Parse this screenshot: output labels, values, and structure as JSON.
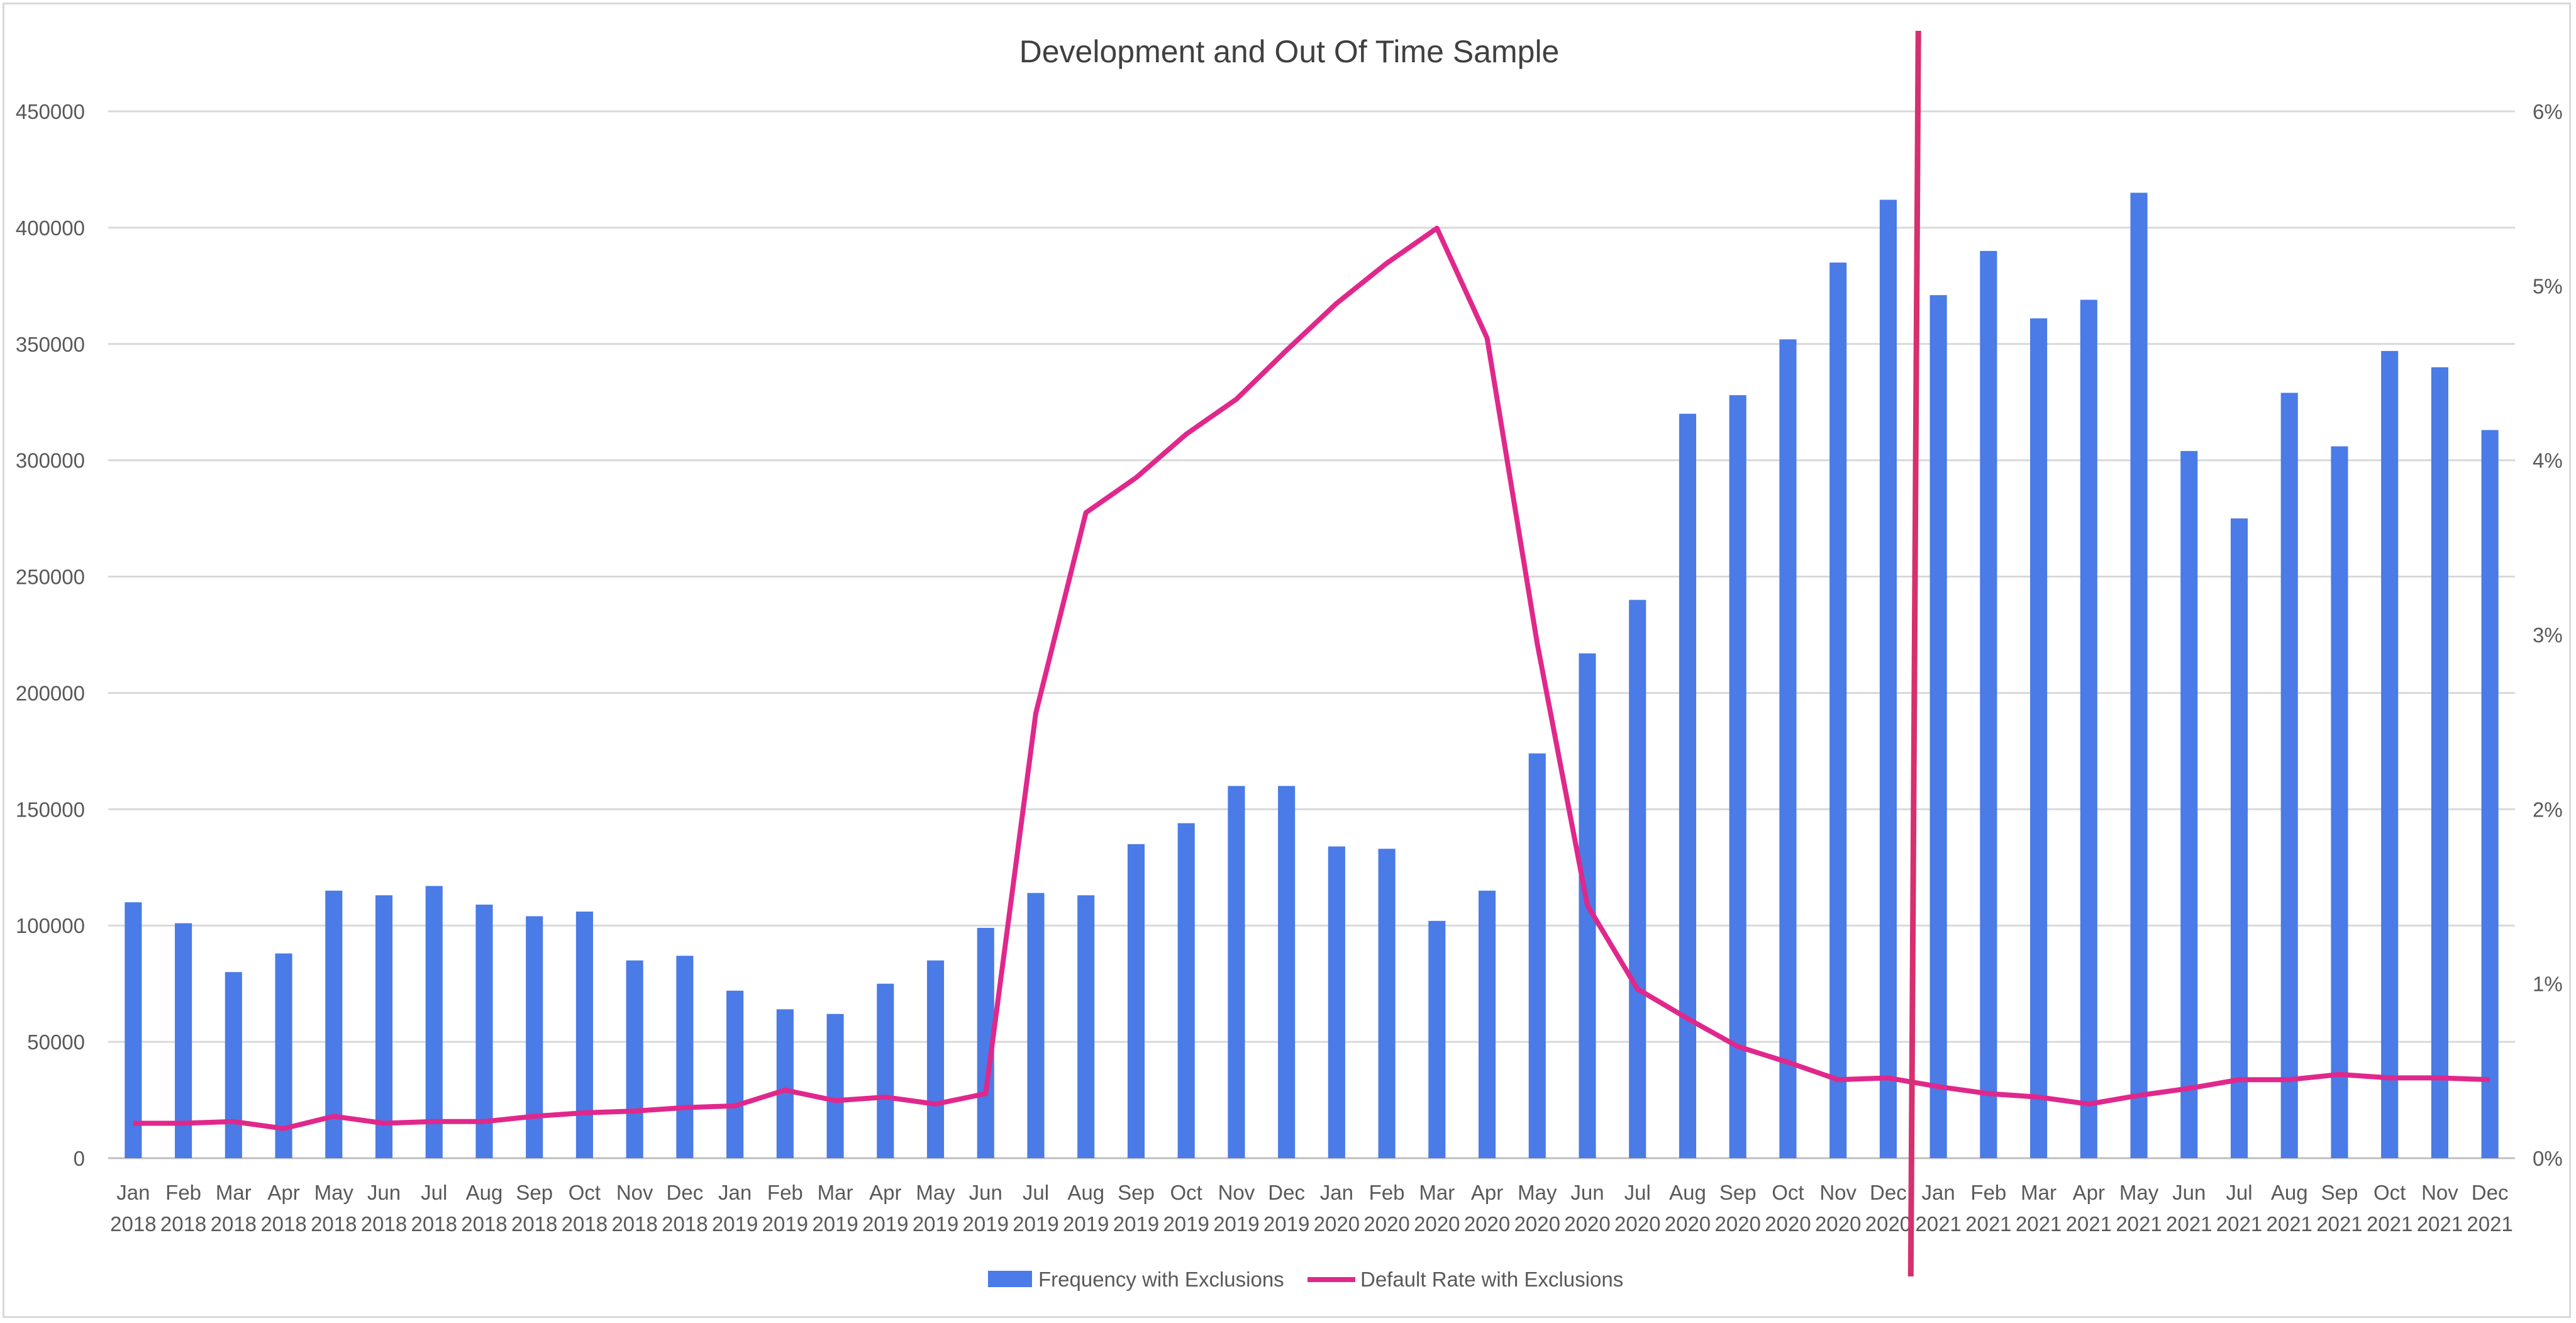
{
  "chart_data": {
    "type": "bar+line",
    "title": "Development and Out Of Time Sample",
    "categories": [
      [
        "Jan",
        "2018"
      ],
      [
        "Feb",
        "2018"
      ],
      [
        "Mar",
        "2018"
      ],
      [
        "Apr",
        "2018"
      ],
      [
        "May",
        "2018"
      ],
      [
        "Jun",
        "2018"
      ],
      [
        "Jul",
        "2018"
      ],
      [
        "Aug",
        "2018"
      ],
      [
        "Sep",
        "2018"
      ],
      [
        "Oct",
        "2018"
      ],
      [
        "Nov",
        "2018"
      ],
      [
        "Dec",
        "2018"
      ],
      [
        "Jan",
        "2019"
      ],
      [
        "Feb",
        "2019"
      ],
      [
        "Mar",
        "2019"
      ],
      [
        "Apr",
        "2019"
      ],
      [
        "May",
        "2019"
      ],
      [
        "Jun",
        "2019"
      ],
      [
        "Jul",
        "2019"
      ],
      [
        "Aug",
        "2019"
      ],
      [
        "Sep",
        "2019"
      ],
      [
        "Oct",
        "2019"
      ],
      [
        "Nov",
        "2019"
      ],
      [
        "Dec",
        "2019"
      ],
      [
        "Jan",
        "2020"
      ],
      [
        "Feb",
        "2020"
      ],
      [
        "Mar",
        "2020"
      ],
      [
        "Apr",
        "2020"
      ],
      [
        "May",
        "2020"
      ],
      [
        "Jun",
        "2020"
      ],
      [
        "Jul",
        "2020"
      ],
      [
        "Aug",
        "2020"
      ],
      [
        "Sep",
        "2020"
      ],
      [
        "Oct",
        "2020"
      ],
      [
        "Nov",
        "2020"
      ],
      [
        "Dec",
        "2020"
      ],
      [
        "Jan",
        "2021"
      ],
      [
        "Feb",
        "2021"
      ],
      [
        "Mar",
        "2021"
      ],
      [
        "Apr",
        "2021"
      ],
      [
        "May",
        "2021"
      ],
      [
        "Jun",
        "2021"
      ],
      [
        "Jul",
        "2021"
      ],
      [
        "Aug",
        "2021"
      ],
      [
        "Sep",
        "2021"
      ],
      [
        "Oct",
        "2021"
      ],
      [
        "Nov",
        "2021"
      ],
      [
        "Dec",
        "2021"
      ]
    ],
    "series": [
      {
        "name": "Frequency with Exclusions",
        "kind": "bar",
        "axis": "left",
        "color": "#4a7be6",
        "values": [
          110000,
          101000,
          80000,
          88000,
          115000,
          113000,
          117000,
          109000,
          104000,
          106000,
          85000,
          87000,
          72000,
          64000,
          62000,
          75000,
          85000,
          99000,
          114000,
          113000,
          135000,
          144000,
          160000,
          160000,
          134000,
          133000,
          102000,
          115000,
          174000,
          217000,
          240000,
          320000,
          328000,
          352000,
          385000,
          412000,
          371000,
          390000,
          361000,
          369000,
          415000,
          304000,
          275000,
          329000,
          306000,
          347000,
          340000,
          313000
        ]
      },
      {
        "name": "Default Rate with Exclusions",
        "kind": "line",
        "axis": "right",
        "color": "#e0288c",
        "values": [
          0.2,
          0.2,
          0.21,
          0.17,
          0.24,
          0.2,
          0.21,
          0.21,
          0.24,
          0.26,
          0.27,
          0.29,
          0.3,
          0.39,
          0.33,
          0.35,
          0.31,
          0.37,
          2.55,
          3.7,
          3.9,
          4.15,
          4.35,
          4.63,
          4.9,
          5.13,
          5.33,
          4.7,
          2.95,
          1.45,
          0.97,
          0.8,
          0.64,
          0.55,
          0.45,
          0.46,
          0.41,
          0.37,
          0.35,
          0.31,
          0.36,
          0.4,
          0.45,
          0.45,
          0.48,
          0.46,
          0.46,
          0.45
        ]
      }
    ],
    "y_left": {
      "ylim": [
        0,
        450000
      ],
      "ticks": [
        "0",
        "50000",
        "100000",
        "150000",
        "200000",
        "250000",
        "300000",
        "350000",
        "400000",
        "450000"
      ]
    },
    "y_right": {
      "ylim": [
        0,
        6
      ],
      "unit": "%",
      "ticks": [
        "0%",
        "1%",
        "2%",
        "3%",
        "4%",
        "5%",
        "6%"
      ]
    },
    "grid": true,
    "legend_position": "bottom",
    "annotations": [
      {
        "type": "vertical-line",
        "between": [
          "Dec 2020",
          "Jan 2021"
        ],
        "color": "#d6306e"
      }
    ]
  }
}
